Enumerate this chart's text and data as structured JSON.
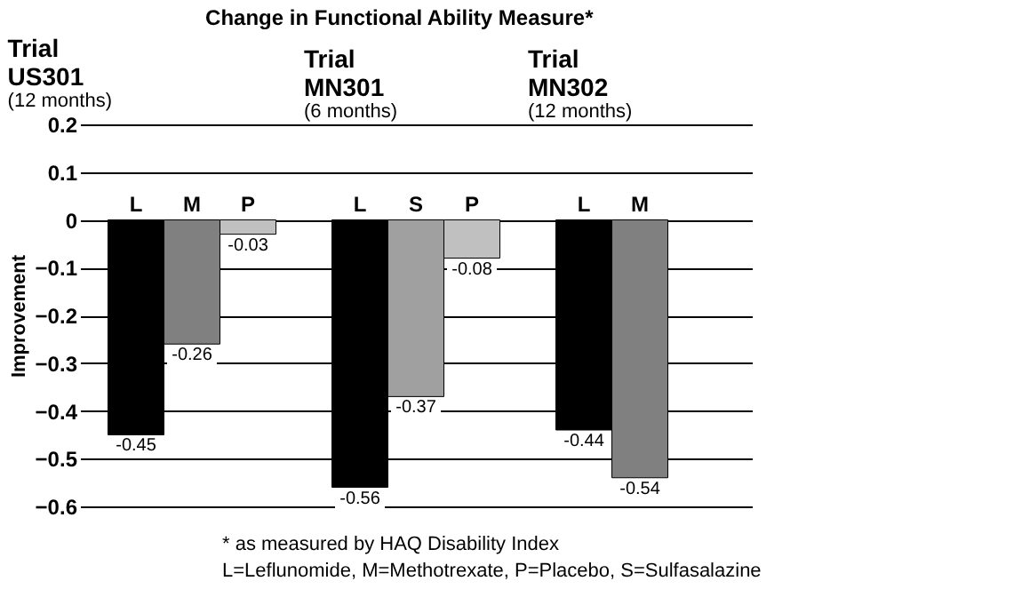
{
  "chart_data": [
    {
      "type": "bar",
      "title": "Change in Functional Ability Measure*",
      "subtitle": [
        "Trial",
        "US301",
        "(12 months)"
      ],
      "ylabel": "Improvement",
      "categories": [
        "L",
        "M",
        "P"
      ],
      "values": [
        -0.45,
        -0.26,
        -0.03
      ],
      "colors": [
        "#000000",
        "#808080",
        "#c0c0c0"
      ],
      "ylim": [
        -0.6,
        0.2
      ],
      "yticks": [
        -0.6,
        -0.5,
        -0.4,
        -0.3,
        -0.2,
        -0.1,
        0,
        0.1,
        0.2
      ],
      "grid": "y",
      "data_labels": true,
      "annotations": [
        "* as measured by HAQ Disability Index",
        "L=Leflunomide, M=Methotrexate, P=Placebo, S=Sulfasalazine"
      ]
    },
    {
      "type": "bar",
      "subtitle": [
        "Trial",
        "MN301",
        "(6 months)"
      ],
      "categories": [
        "L",
        "S",
        "P"
      ],
      "values": [
        -0.56,
        -0.37,
        -0.08
      ],
      "colors": [
        "#000000",
        "#a0a0a0",
        "#c0c0c0"
      ],
      "ylim": [
        -0.6,
        0.2
      ],
      "yticks": [
        -0.6,
        -0.5,
        -0.4,
        -0.3,
        -0.2,
        -0.1,
        0,
        0.1,
        0.2
      ],
      "grid": "y",
      "data_labels": true,
      "tick_labels": "x"
    },
    {
      "type": "bar",
      "subtitle": [
        "Trial",
        "MN302",
        "(12 months)"
      ],
      "categories": [
        "L",
        "M"
      ],
      "values": [
        -0.44,
        -0.54
      ],
      "colors": [
        "#000000",
        "#808080"
      ],
      "ylim": [
        -0.6,
        0.2
      ],
      "yticks": [
        -0.6,
        -0.5,
        -0.4,
        -0.3,
        -0.2,
        -0.1,
        0,
        0.1,
        0.2
      ],
      "grid": "y",
      "data_labels": true,
      "tick_labels": "x"
    }
  ]
}
